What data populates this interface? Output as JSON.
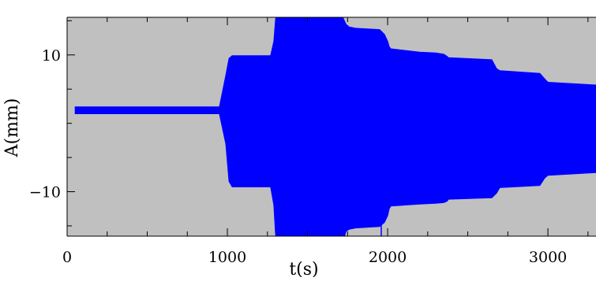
{
  "chart_data": {
    "type": "area",
    "title": "",
    "xlabel": "t(s)",
    "ylabel": "A(mm)",
    "xlim": [
      0,
      3300
    ],
    "ylim": [
      -16.5,
      15.5
    ],
    "x_ticks": [
      0,
      1000,
      2000,
      3000
    ],
    "x_tick_labels": [
      "0",
      "1000",
      "2000",
      "3000"
    ],
    "y_ticks": [
      10,
      -10
    ],
    "y_tick_labels": [
      "10",
      "−10"
    ],
    "grid": false,
    "legend": "none",
    "background_color": "#c0c0c0",
    "series": [
      {
        "color": "#0000ff",
        "envelope": {
          "x": [
            50,
            950,
            990,
            1010,
            1030,
            1250,
            1270,
            1290,
            1300,
            1310,
            1320,
            1700,
            1720,
            1740,
            1760,
            1800,
            1950,
            1980,
            2000,
            2010,
            2020,
            2200,
            2300,
            2350,
            2370,
            2380,
            2650,
            2680,
            2700,
            2950,
            2980,
            3000,
            3300
          ],
          "upper": [
            2.4,
            2.4,
            7,
            9.5,
            9.9,
            9.9,
            9.9,
            12,
            15,
            16.9,
            17.1,
            17.1,
            15.5,
            14.5,
            14.1,
            13.9,
            13.7,
            13.0,
            12.0,
            11.2,
            10.9,
            10.4,
            10.3,
            10.1,
            9.8,
            9.6,
            9.3,
            8.0,
            7.7,
            7.3,
            6.5,
            6.0,
            5.6
          ],
          "lower": [
            1.4,
            1.4,
            -3,
            -8.5,
            -9.3,
            -9.3,
            -9.3,
            -12,
            -16,
            -18.1,
            -18.2,
            -18.2,
            -17.5,
            -15.8,
            -15.5,
            -15.3,
            -15.1,
            -14.5,
            -13.5,
            -12.5,
            -12.1,
            -11.8,
            -11.7,
            -11.6,
            -11.4,
            -11.1,
            -10.9,
            -10.2,
            -9.4,
            -9.1,
            -8.0,
            -7.6,
            -7.2
          ]
        },
        "spike": {
          "x": 1960,
          "low": -21
        }
      }
    ]
  }
}
